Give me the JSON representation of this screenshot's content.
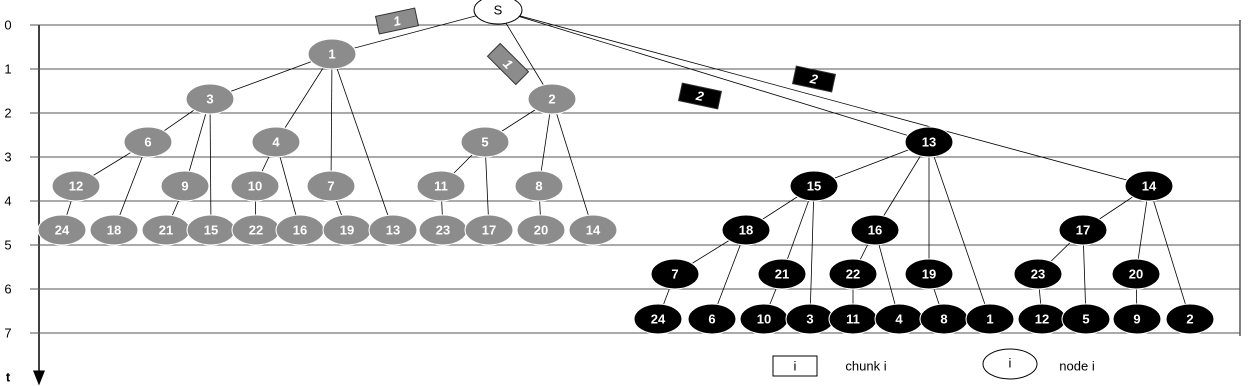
{
  "time_axis": {
    "labels": [
      "0",
      "1",
      "2",
      "3",
      "4",
      "5",
      "6",
      "7"
    ],
    "axis_label": "t"
  },
  "root": {
    "label": "S"
  },
  "trees": [
    {
      "fill": "#8c8c8c",
      "nodes": [
        "1",
        "3",
        "2",
        "6",
        "4",
        "5",
        "12",
        "9",
        "10",
        "7",
        "11",
        "8",
        "24",
        "18",
        "21",
        "15",
        "22",
        "16",
        "19",
        "13",
        "23",
        "17",
        "20",
        "14"
      ]
    },
    {
      "fill": "#000000",
      "nodes": [
        "13",
        "15",
        "14",
        "18",
        "16",
        "17",
        "7",
        "21",
        "22",
        "19",
        "23",
        "20",
        "24",
        "6",
        "10",
        "3",
        "11",
        "4",
        "8",
        "1",
        "12",
        "5",
        "9",
        "2"
      ]
    }
  ],
  "chunks": [
    "1",
    "1",
    "2",
    "2"
  ],
  "legend": {
    "chunk_symbol": "i",
    "chunk_text": "chunk i",
    "node_symbol": "i",
    "node_text": "node i"
  }
}
